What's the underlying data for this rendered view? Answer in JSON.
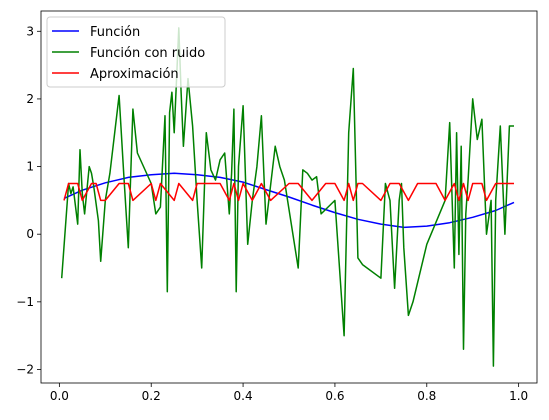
{
  "chart_data": {
    "type": "line",
    "title": "",
    "xlabel": "",
    "ylabel": "",
    "xlim": [
      -0.04,
      1.04
    ],
    "ylim": [
      -2.2,
      3.3
    ],
    "xticks": [
      0.0,
      0.2,
      0.4,
      0.6,
      0.8,
      1.0
    ],
    "xtick_labels": [
      "0.0",
      "0.2",
      "0.4",
      "0.6",
      "0.8",
      "1.0"
    ],
    "yticks": [
      -2,
      -1,
      0,
      1,
      2,
      3
    ],
    "ytick_labels": [
      "−2",
      "−1",
      "0",
      "1",
      "2",
      "3"
    ],
    "grid": false,
    "legend_position": "top-left",
    "series": [
      {
        "name": "Función",
        "color": "#0000ff",
        "x": [
          0.01,
          0.05,
          0.1,
          0.15,
          0.2,
          0.25,
          0.3,
          0.35,
          0.4,
          0.45,
          0.5,
          0.55,
          0.6,
          0.65,
          0.7,
          0.75,
          0.8,
          0.85,
          0.9,
          0.95,
          0.99
        ],
        "y": [
          0.53,
          0.65,
          0.76,
          0.84,
          0.88,
          0.9,
          0.88,
          0.84,
          0.77,
          0.66,
          0.55,
          0.43,
          0.32,
          0.22,
          0.15,
          0.1,
          0.12,
          0.17,
          0.25,
          0.35,
          0.47
        ]
      },
      {
        "name": "Función con ruido",
        "color": "#008000",
        "x": [
          0.005,
          0.02,
          0.025,
          0.03,
          0.04,
          0.045,
          0.05,
          0.055,
          0.065,
          0.07,
          0.075,
          0.085,
          0.09,
          0.1,
          0.11,
          0.13,
          0.14,
          0.15,
          0.16,
          0.17,
          0.2,
          0.21,
          0.22,
          0.23,
          0.235,
          0.24,
          0.245,
          0.25,
          0.26,
          0.265,
          0.27,
          0.28,
          0.29,
          0.3,
          0.31,
          0.32,
          0.33,
          0.34,
          0.35,
          0.36,
          0.37,
          0.375,
          0.38,
          0.385,
          0.39,
          0.4,
          0.41,
          0.42,
          0.43,
          0.44,
          0.45,
          0.47,
          0.48,
          0.49,
          0.52,
          0.53,
          0.54,
          0.55,
          0.56,
          0.57,
          0.6,
          0.62,
          0.63,
          0.64,
          0.65,
          0.66,
          0.7,
          0.71,
          0.72,
          0.73,
          0.74,
          0.745,
          0.75,
          0.76,
          0.77,
          0.8,
          0.84,
          0.85,
          0.86,
          0.865,
          0.87,
          0.875,
          0.88,
          0.885,
          0.89,
          0.9,
          0.91,
          0.92,
          0.93,
          0.94,
          0.945,
          0.95,
          0.96,
          0.97,
          0.98,
          0.99
        ],
        "y": [
          -0.65,
          0.75,
          0.6,
          0.7,
          0.15,
          1.25,
          0.6,
          0.3,
          1.0,
          0.9,
          0.7,
          0.2,
          -0.4,
          0.5,
          0.9,
          2.05,
          0.9,
          -0.2,
          1.85,
          1.2,
          0.75,
          0.3,
          0.4,
          1.75,
          -0.85,
          1.8,
          2.1,
          1.5,
          3.05,
          2.1,
          1.3,
          2.3,
          1.6,
          0.5,
          -0.5,
          1.5,
          0.95,
          0.8,
          1.1,
          1.2,
          0.3,
          0.9,
          1.85,
          -0.85,
          1.0,
          1.9,
          -0.15,
          0.5,
          1.0,
          1.75,
          0.15,
          1.3,
          1.0,
          0.8,
          -0.5,
          0.95,
          0.9,
          0.8,
          0.85,
          0.3,
          0.5,
          -1.5,
          1.5,
          2.45,
          -0.35,
          -0.45,
          -0.65,
          0.75,
          0.5,
          -0.8,
          0.5,
          0.75,
          -0.2,
          -1.2,
          -1.0,
          -0.15,
          0.5,
          1.65,
          -0.5,
          1.5,
          -0.3,
          1.3,
          -1.7,
          0.3,
          0.8,
          2.0,
          1.4,
          1.7,
          0.0,
          0.5,
          -1.95,
          0.5,
          1.6,
          0.0,
          1.6,
          1.6
        ]
      },
      {
        "name": "Aproximación",
        "color": "#ff0000",
        "x": [
          0.01,
          0.02,
          0.04,
          0.05,
          0.07,
          0.08,
          0.09,
          0.1,
          0.13,
          0.15,
          0.16,
          0.2,
          0.21,
          0.22,
          0.25,
          0.26,
          0.29,
          0.3,
          0.35,
          0.37,
          0.38,
          0.39,
          0.4,
          0.42,
          0.44,
          0.46,
          0.5,
          0.52,
          0.55,
          0.58,
          0.6,
          0.62,
          0.63,
          0.64,
          0.65,
          0.66,
          0.7,
          0.72,
          0.74,
          0.76,
          0.78,
          0.82,
          0.84,
          0.86,
          0.87,
          0.88,
          0.89,
          0.9,
          0.92,
          0.93,
          0.95,
          0.99
        ],
        "y": [
          0.5,
          0.75,
          0.75,
          0.5,
          0.75,
          0.75,
          0.5,
          0.5,
          0.75,
          0.75,
          0.5,
          0.75,
          0.5,
          0.75,
          0.5,
          0.75,
          0.5,
          0.75,
          0.75,
          0.5,
          0.75,
          0.5,
          0.75,
          0.5,
          0.75,
          0.5,
          0.75,
          0.75,
          0.5,
          0.75,
          0.75,
          0.5,
          0.75,
          0.5,
          0.75,
          0.75,
          0.5,
          0.75,
          0.75,
          0.5,
          0.75,
          0.75,
          0.5,
          0.75,
          0.5,
          0.75,
          0.5,
          0.75,
          0.75,
          0.5,
          0.75,
          0.75
        ]
      }
    ]
  }
}
